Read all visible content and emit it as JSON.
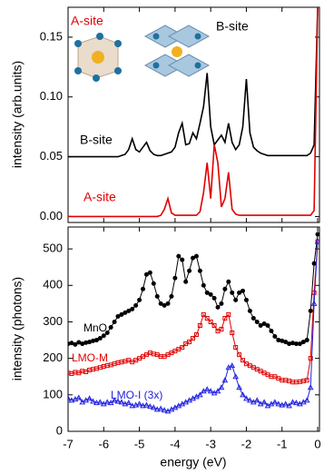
{
  "chart_data": [
    {
      "type": "line",
      "ylabel": "intensity (arb.units)",
      "xlim": [
        -7,
        0.05
      ],
      "ylim": [
        -0.005,
        0.175
      ],
      "yticks": [
        {
          "value": 0,
          "label": "0.00"
        },
        {
          "value": 0.05,
          "label": "0.05"
        },
        {
          "value": 0.1,
          "label": "0.10"
        },
        {
          "value": 0.15,
          "label": "0.15"
        }
      ],
      "annotations": [
        {
          "text": "A-site",
          "color": "#e00000"
        },
        {
          "text": "B-site",
          "color": "#000000"
        },
        {
          "text": "B-site",
          "color": "#000000"
        },
        {
          "text": "A-site",
          "color": "#e00000"
        }
      ],
      "x": [
        -7.0,
        -6.9,
        -6.8,
        -6.7,
        -6.6,
        -6.5,
        -6.4,
        -6.3,
        -6.2,
        -6.1,
        -6.0,
        -5.9,
        -5.8,
        -5.7,
        -5.6,
        -5.5,
        -5.4,
        -5.3,
        -5.2,
        -5.1,
        -5.0,
        -4.9,
        -4.8,
        -4.7,
        -4.6,
        -4.5,
        -4.4,
        -4.3,
        -4.2,
        -4.1,
        -4.0,
        -3.9,
        -3.8,
        -3.7,
        -3.6,
        -3.5,
        -3.4,
        -3.3,
        -3.2,
        -3.1,
        -3.0,
        -2.9,
        -2.8,
        -2.7,
        -2.6,
        -2.5,
        -2.4,
        -2.3,
        -2.2,
        -2.1,
        -2.0,
        -1.9,
        -1.8,
        -1.7,
        -1.6,
        -1.5,
        -1.4,
        -1.3,
        -1.2,
        -1.1,
        -1.0,
        -0.9,
        -0.8,
        -0.7,
        -0.6,
        -0.5,
        -0.4,
        -0.3,
        -0.2,
        -0.1,
        0.0
      ],
      "series": [
        {
          "name": "B-site",
          "color": "#000000",
          "values": [
            0.05,
            0.05,
            0.05,
            0.05,
            0.05,
            0.05,
            0.05,
            0.05,
            0.05,
            0.05,
            0.05,
            0.05,
            0.05,
            0.05,
            0.05,
            0.051,
            0.052,
            0.056,
            0.065,
            0.056,
            0.054,
            0.058,
            0.062,
            0.055,
            0.052,
            0.051,
            0.051,
            0.052,
            0.053,
            0.054,
            0.058,
            0.07,
            0.078,
            0.06,
            0.061,
            0.07,
            0.065,
            0.078,
            0.092,
            0.12,
            0.075,
            0.06,
            0.064,
            0.068,
            0.062,
            0.078,
            0.062,
            0.056,
            0.06,
            0.075,
            0.115,
            0.07,
            0.058,
            0.055,
            0.053,
            0.052,
            0.051,
            0.051,
            0.051,
            0.051,
            0.051,
            0.051,
            0.051,
            0.051,
            0.051,
            0.051,
            0.051,
            0.051,
            0.053,
            0.06,
            0.175
          ]
        },
        {
          "name": "A-site",
          "color": "#e00000",
          "values": [
            0,
            0,
            0,
            0,
            0,
            0,
            0,
            0,
            0,
            0,
            0,
            0,
            0,
            0,
            0,
            0,
            0,
            0,
            0,
            0,
            0,
            0,
            0,
            0,
            0,
            0,
            0.001,
            0.006,
            0.015,
            0.003,
            0.001,
            0.001,
            0.001,
            0.001,
            0.001,
            0.001,
            0.001,
            0.004,
            0.02,
            0.045,
            0.015,
            0.06,
            0.045,
            0.008,
            0.015,
            0.037,
            0.006,
            0.002,
            0.001,
            0.001,
            0.001,
            0.001,
            0.001,
            0.001,
            0.001,
            0.001,
            0.001,
            0.001,
            0.001,
            0.001,
            0.001,
            0.001,
            0.001,
            0.001,
            0.001,
            0.001,
            0.001,
            0.001,
            0.001,
            0.005,
            0.175
          ]
        }
      ]
    },
    {
      "type": "line",
      "xlabel": "energy (eV)",
      "ylabel": "intensity (photons)",
      "xlim": [
        -7,
        0.05
      ],
      "ylim": [
        0,
        560
      ],
      "xticks": [
        -7,
        -6,
        -5,
        -4,
        -3,
        -2,
        -1,
        0
      ],
      "yticks": [
        0,
        100,
        200,
        300,
        400,
        500
      ],
      "x": [
        -7.0,
        -6.9,
        -6.8,
        -6.7,
        -6.6,
        -6.5,
        -6.4,
        -6.3,
        -6.2,
        -6.1,
        -6.0,
        -5.9,
        -5.8,
        -5.7,
        -5.6,
        -5.5,
        -5.4,
        -5.3,
        -5.2,
        -5.1,
        -5.0,
        -4.9,
        -4.8,
        -4.7,
        -4.6,
        -4.5,
        -4.4,
        -4.3,
        -4.2,
        -4.1,
        -4.0,
        -3.9,
        -3.8,
        -3.7,
        -3.6,
        -3.5,
        -3.4,
        -3.3,
        -3.2,
        -3.1,
        -3.0,
        -2.9,
        -2.8,
        -2.7,
        -2.6,
        -2.5,
        -2.4,
        -2.3,
        -2.2,
        -2.1,
        -2.0,
        -1.9,
        -1.8,
        -1.7,
        -1.6,
        -1.5,
        -1.4,
        -1.3,
        -1.2,
        -1.1,
        -1.0,
        -0.9,
        -0.8,
        -0.7,
        -0.6,
        -0.5,
        -0.4,
        -0.3,
        -0.2,
        -0.1,
        0.0
      ],
      "series": [
        {
          "name": "MnO",
          "color": "#000000",
          "values": [
            240,
            242,
            238,
            244,
            240,
            243,
            245,
            248,
            250,
            255,
            262,
            270,
            285,
            300,
            315,
            320,
            325,
            330,
            335,
            345,
            360,
            390,
            430,
            435,
            405,
            370,
            350,
            345,
            350,
            370,
            420,
            480,
            470,
            410,
            440,
            475,
            480,
            440,
            400,
            380,
            375,
            365,
            340,
            350,
            390,
            410,
            380,
            360,
            380,
            385,
            360,
            330,
            310,
            300,
            290,
            295,
            290,
            275,
            260,
            250,
            248,
            245,
            240,
            242,
            240,
            240,
            245,
            250,
            330,
            460,
            540
          ]
        },
        {
          "name": "LMO-M",
          "color": "#e00000",
          "values": [
            160,
            158,
            162,
            160,
            165,
            163,
            168,
            170,
            172,
            175,
            178,
            180,
            182,
            185,
            188,
            190,
            192,
            195,
            190,
            195,
            200,
            205,
            210,
            215,
            212,
            210,
            205,
            205,
            210,
            215,
            220,
            225,
            230,
            240,
            245,
            255,
            265,
            290,
            320,
            310,
            300,
            290,
            275,
            280,
            310,
            320,
            270,
            230,
            210,
            195,
            185,
            180,
            175,
            170,
            165,
            160,
            155,
            150,
            150,
            145,
            140,
            140,
            138,
            135,
            135,
            136,
            138,
            140,
            200,
            380,
            520
          ]
        },
        {
          "name": "LMO-I (3x)",
          "color": "#2020e0",
          "values": [
            90,
            85,
            88,
            92,
            80,
            85,
            90,
            82,
            78,
            80,
            75,
            80,
            78,
            85,
            82,
            80,
            75,
            78,
            70,
            72,
            75,
            70,
            72,
            68,
            65,
            60,
            62,
            58,
            55,
            60,
            65,
            70,
            75,
            80,
            85,
            90,
            95,
            100,
            110,
            115,
            110,
            105,
            110,
            120,
            140,
            175,
            180,
            150,
            120,
            100,
            90,
            85,
            80,
            85,
            75,
            80,
            70,
            75,
            80,
            75,
            72,
            75,
            70,
            80,
            78,
            75,
            80,
            85,
            120,
            350,
            520
          ]
        }
      ]
    }
  ]
}
